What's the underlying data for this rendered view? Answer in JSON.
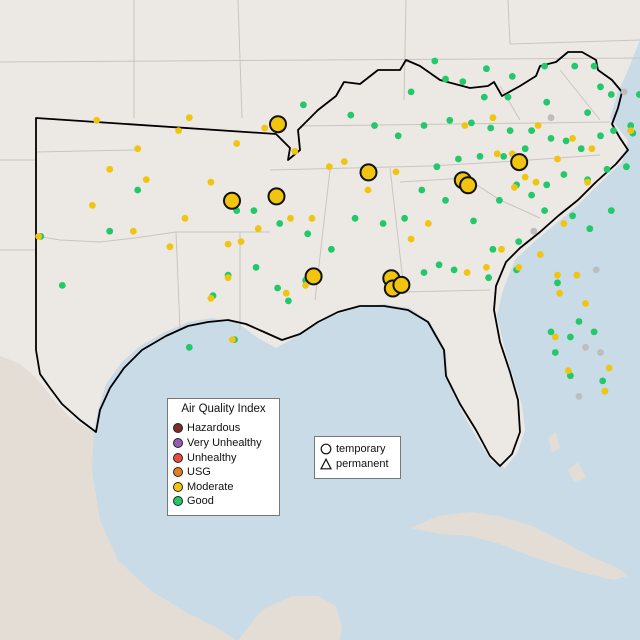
{
  "colors": {
    "ocean": "#c8dbe6",
    "land": "#ece8e4",
    "terrain": "#e3ddd6",
    "state_border": "#c9c4bf",
    "region_outline": "#000000",
    "good": "#22c86a",
    "moderate": "#f1c40f",
    "usg": "#e67e22",
    "unhealthy": "#e74c3c",
    "very_unhealthy": "#9b59b6",
    "hazardous": "#7b2d26",
    "no_data": "#bdbdbd"
  },
  "legend": {
    "title": "Air Quality Index",
    "items": [
      {
        "label": "Hazardous",
        "color": "#7b2d26"
      },
      {
        "label": "Very Unhealthy",
        "color": "#9b59b6"
      },
      {
        "label": "Unhealthy",
        "color": "#e74c3c"
      },
      {
        "label": "USG",
        "color": "#e67e22"
      },
      {
        "label": "Moderate",
        "color": "#f1c40f"
      },
      {
        "label": "Good",
        "color": "#22c86a"
      }
    ]
  },
  "monitor_legend": {
    "items": [
      {
        "label": "temporary",
        "shape": "circle-icon"
      },
      {
        "label": "permanent",
        "shape": "triangle-icon"
      }
    ]
  },
  "monitors": [
    {
      "category": "moderate",
      "type": "temporary",
      "lon": -95.38,
      "lat": 36.15
    },
    {
      "category": "moderate",
      "type": "temporary",
      "lon": -97.52,
      "lat": 33.18
    },
    {
      "category": "moderate",
      "type": "temporary",
      "lon": -95.45,
      "lat": 33.35
    },
    {
      "category": "moderate",
      "type": "temporary",
      "lon": -91.18,
      "lat": 34.28
    },
    {
      "category": "moderate",
      "type": "temporary",
      "lon": -86.8,
      "lat": 33.98
    },
    {
      "category": "moderate",
      "type": "temporary",
      "lon": -86.55,
      "lat": 33.78
    },
    {
      "category": "moderate",
      "type": "temporary",
      "lon": -84.18,
      "lat": 34.68
    },
    {
      "category": "moderate",
      "type": "temporary",
      "lon": -93.73,
      "lat": 30.25
    },
    {
      "category": "moderate",
      "type": "temporary",
      "lon": -90.12,
      "lat": 30.18
    },
    {
      "category": "moderate",
      "type": "temporary",
      "lon": -90.05,
      "lat": 29.78
    },
    {
      "category": "moderate",
      "type": "temporary",
      "lon": -89.65,
      "lat": 29.92
    }
  ],
  "background_points": {
    "good": [
      [
        -94.2,
        36.9
      ],
      [
        -92.0,
        36.5
      ],
      [
        -90.9,
        36.1
      ],
      [
        -89.8,
        35.7
      ],
      [
        -88.6,
        36.1
      ],
      [
        -87.4,
        36.3
      ],
      [
        -86.4,
        36.2
      ],
      [
        -85.5,
        36.0
      ],
      [
        -84.6,
        35.9
      ],
      [
        -83.6,
        35.9
      ],
      [
        -82.7,
        35.6
      ],
      [
        -82.0,
        35.5
      ],
      [
        -81.3,
        35.2
      ],
      [
        -80.4,
        35.7
      ],
      [
        -79.8,
        35.9
      ],
      [
        -78.9,
        35.8
      ],
      [
        -77.9,
        35.7
      ],
      [
        -77.2,
        35.3
      ],
      [
        -78.3,
        34.8
      ],
      [
        -79.2,
        34.5
      ],
      [
        -80.1,
        34.4
      ],
      [
        -81.0,
        34.0
      ],
      [
        -82.1,
        34.2
      ],
      [
        -82.9,
        33.8
      ],
      [
        -83.6,
        33.4
      ],
      [
        -84.3,
        33.8
      ],
      [
        -85.1,
        33.2
      ],
      [
        -86.0,
        34.9
      ],
      [
        -87.0,
        34.8
      ],
      [
        -88.0,
        34.5
      ],
      [
        -88.7,
        33.6
      ],
      [
        -89.5,
        32.5
      ],
      [
        -90.5,
        32.3
      ],
      [
        -91.8,
        32.5
      ],
      [
        -92.9,
        31.3
      ],
      [
        -94.0,
        31.9
      ],
      [
        -95.3,
        32.3
      ],
      [
        -96.5,
        32.8
      ],
      [
        -97.3,
        32.8
      ],
      [
        -98.4,
        29.5
      ],
      [
        -97.7,
        30.3
      ],
      [
        -96.4,
        30.6
      ],
      [
        -95.4,
        29.8
      ],
      [
        -94.9,
        29.3
      ],
      [
        -94.1,
        30.1
      ],
      [
        -97.4,
        27.8
      ],
      [
        -99.5,
        27.5
      ],
      [
        -101.9,
        33.6
      ],
      [
        -103.2,
        32.0
      ],
      [
        -106.4,
        31.8
      ],
      [
        -105.4,
        29.9
      ],
      [
        -81.8,
        27.9
      ],
      [
        -81.4,
        28.5
      ],
      [
        -80.7,
        28.1
      ],
      [
        -82.5,
        27.3
      ],
      [
        -82.7,
        28.1
      ],
      [
        -80.3,
        26.2
      ],
      [
        -81.8,
        26.4
      ],
      [
        -82.4,
        30.0
      ],
      [
        -84.3,
        30.5
      ],
      [
        -85.6,
        30.2
      ],
      [
        -87.2,
        30.5
      ],
      [
        -87.9,
        30.7
      ],
      [
        -88.6,
        30.4
      ],
      [
        -80.9,
        32.1
      ],
      [
        -79.9,
        32.8
      ],
      [
        -81.7,
        32.6
      ],
      [
        -83.0,
        32.8
      ],
      [
        -77.0,
        38.9
      ],
      [
        -77.4,
        37.5
      ],
      [
        -76.3,
        36.9
      ],
      [
        -78.6,
        37.3
      ],
      [
        -79.9,
        37.3
      ],
      [
        -80.4,
        37.6
      ],
      [
        -81.6,
        38.4
      ],
      [
        -80.7,
        38.4
      ],
      [
        -83.0,
        38.4
      ],
      [
        -84.5,
        38.0
      ],
      [
        -85.7,
        38.3
      ],
      [
        -86.8,
        37.8
      ],
      [
        -87.6,
        37.9
      ],
      [
        -88.1,
        38.6
      ],
      [
        -89.2,
        37.4
      ],
      [
        -82.9,
        37.0
      ],
      [
        -84.7,
        37.2
      ],
      [
        -85.8,
        37.2
      ],
      [
        -81.0,
        36.6
      ],
      [
        -76.1,
        38.3
      ],
      [
        -75.6,
        39.6
      ],
      [
        -76.6,
        39.3
      ],
      [
        -78.1,
        39.1
      ],
      [
        -79.0,
        36.1
      ],
      [
        -77.6,
        36.4
      ],
      [
        -76.9,
        34.7
      ],
      [
        -83.9,
        35.2
      ],
      [
        -84.9,
        34.9
      ],
      [
        -86.3,
        32.4
      ],
      [
        -87.6,
        33.2
      ],
      [
        -85.4,
        31.3
      ],
      [
        -84.2,
        31.6
      ]
    ],
    "moderate": [
      [
        -103.8,
        36.3
      ],
      [
        -101.9,
        35.2
      ],
      [
        -100.0,
        35.9
      ],
      [
        -99.5,
        36.4
      ],
      [
        -97.3,
        35.4
      ],
      [
        -96.0,
        36.0
      ],
      [
        -94.6,
        35.1
      ],
      [
        -93.0,
        34.5
      ],
      [
        -92.3,
        34.7
      ],
      [
        -101.5,
        34.0
      ],
      [
        -103.2,
        34.4
      ],
      [
        -98.5,
        33.9
      ],
      [
        -97.7,
        31.5
      ],
      [
        -97.1,
        31.6
      ],
      [
        -96.3,
        32.1
      ],
      [
        -94.8,
        32.5
      ],
      [
        -93.8,
        32.5
      ],
      [
        -91.2,
        33.6
      ],
      [
        -89.9,
        34.3
      ],
      [
        -89.2,
        31.7
      ],
      [
        -88.4,
        32.3
      ],
      [
        -85.0,
        31.3
      ],
      [
        -83.2,
        31.1
      ],
      [
        -86.6,
        30.4
      ],
      [
        -85.7,
        30.6
      ],
      [
        -84.2,
        30.6
      ],
      [
        -82.4,
        30.3
      ],
      [
        -81.5,
        30.3
      ],
      [
        -81.1,
        29.2
      ],
      [
        -82.3,
        29.6
      ],
      [
        -82.5,
        27.9
      ],
      [
        -80.2,
        25.8
      ],
      [
        -80.0,
        26.7
      ],
      [
        -81.9,
        26.6
      ],
      [
        -82.1,
        32.3
      ],
      [
        -81.0,
        33.9
      ],
      [
        -83.4,
        33.9
      ],
      [
        -84.4,
        33.7
      ],
      [
        -85.2,
        35.0
      ],
      [
        -86.7,
        36.1
      ],
      [
        -85.4,
        36.4
      ],
      [
        -84.5,
        35.0
      ],
      [
        -83.9,
        34.1
      ],
      [
        -82.4,
        34.8
      ],
      [
        -80.8,
        35.2
      ],
      [
        -79.0,
        35.9
      ],
      [
        -81.7,
        35.6
      ],
      [
        -83.3,
        36.1
      ],
      [
        -77.4,
        37.6
      ],
      [
        -77.0,
        38.8
      ],
      [
        -76.5,
        39.3
      ],
      [
        -98.5,
        29.4
      ],
      [
        -97.5,
        27.8
      ],
      [
        -94.1,
        29.9
      ],
      [
        -95.0,
        29.6
      ],
      [
        -97.7,
        30.2
      ],
      [
        -106.5,
        31.8
      ],
      [
        -104.0,
        33.0
      ],
      [
        -99.7,
        32.5
      ],
      [
        -102.1,
        32.0
      ],
      [
        -100.4,
        31.4
      ]
    ],
    "no_data": [
      [
        -77.5,
        36.4
      ],
      [
        -76.8,
        35.6
      ],
      [
        -77.9,
        34.2
      ],
      [
        -80.6,
        30.5
      ],
      [
        -81.1,
        27.5
      ],
      [
        -80.4,
        27.3
      ],
      [
        -81.4,
        25.6
      ],
      [
        -83.5,
        32.0
      ],
      [
        -82.7,
        36.4
      ],
      [
        -79.3,
        37.4
      ]
    ]
  }
}
